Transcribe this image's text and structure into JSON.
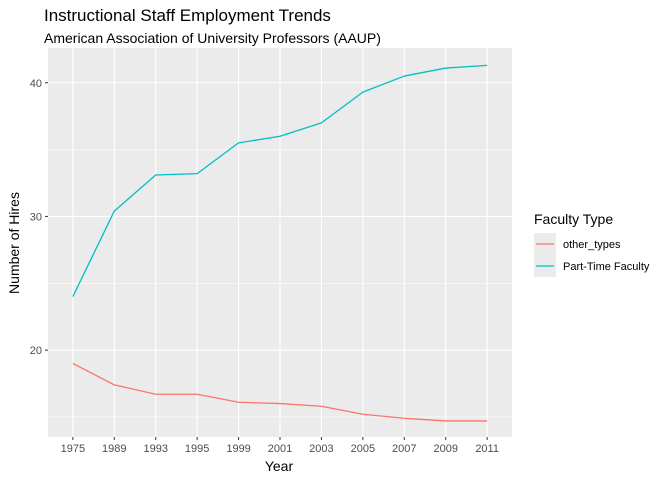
{
  "chart_data": {
    "type": "line",
    "title": "Instructional Staff Employment Trends",
    "subtitle": "American Association of University Professors (AAUP)",
    "xlabel": "Year",
    "ylabel": "Number of Hires",
    "categories": [
      "1975",
      "1989",
      "1993",
      "1995",
      "1999",
      "2001",
      "2003",
      "2005",
      "2007",
      "2009",
      "2011"
    ],
    "y_ticks": [
      20,
      30,
      40
    ],
    "ylim": [
      13.5,
      42.6
    ],
    "grid": true,
    "legend": {
      "title": "Faculty Type",
      "position": "right"
    },
    "series": [
      {
        "name": "other_types",
        "color": "#F8766D",
        "values": [
          19.0,
          17.4,
          16.7,
          16.7,
          16.1,
          16.0,
          15.8,
          15.2,
          14.9,
          14.7,
          14.7
        ]
      },
      {
        "name": "Part-Time Faculty",
        "color": "#00BFC4",
        "values": [
          24.0,
          30.4,
          33.1,
          33.2,
          35.5,
          36.0,
          37.0,
          39.3,
          40.5,
          41.1,
          41.3
        ]
      }
    ],
    "panel_background": "#EBEBEB",
    "grid_color": "#FFFFFF"
  }
}
